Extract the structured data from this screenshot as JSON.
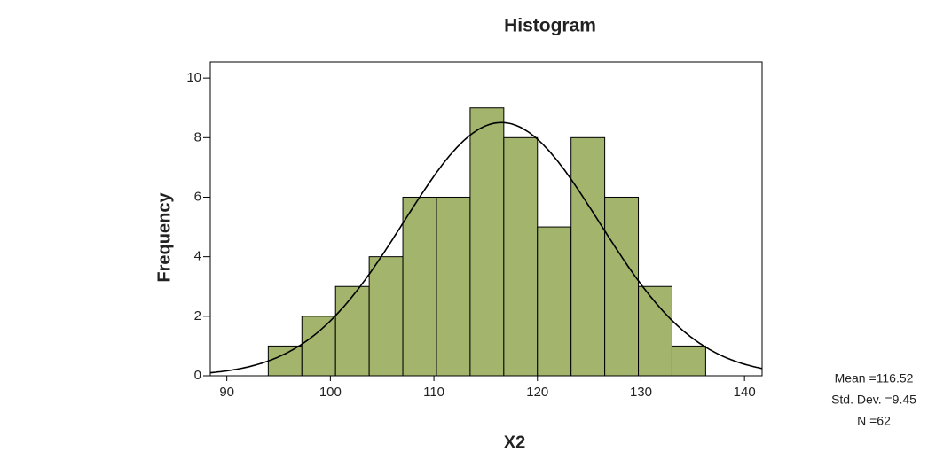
{
  "chart_data": {
    "type": "histogram",
    "title": "Histogram",
    "x_label": "X2",
    "y_label": "Frequency",
    "bins": [
      94.0,
      97.25,
      100.5,
      103.75,
      107.0,
      110.25,
      113.5,
      116.75,
      120.0,
      123.25,
      126.5,
      129.75,
      133.0,
      136.25
    ],
    "values": [
      1,
      2,
      3,
      4,
      6,
      6,
      9,
      8,
      5,
      8,
      6,
      3,
      1
    ],
    "color": "#a3b46c",
    "xlim": [
      88.4,
      141.7
    ],
    "xticks": [
      90,
      100,
      110,
      120,
      130,
      140
    ],
    "ylim": [
      0,
      10.54
    ],
    "yticks": [
      0,
      2,
      4,
      6,
      8,
      10
    ],
    "mean": 116.52,
    "std": 9.45,
    "n": 62,
    "stats_labels": [
      "Mean =116.52",
      "Std. Dev. =9.45",
      "N =62"
    ]
  }
}
